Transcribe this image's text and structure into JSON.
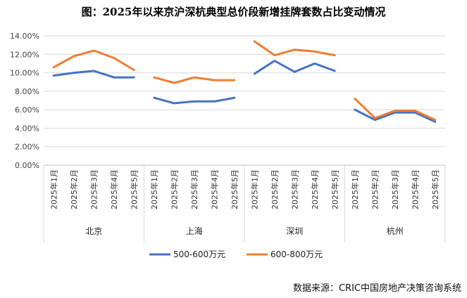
{
  "title": "图：2025年以来京沪深杭典型总价段新增挂牌套数占比变动情况",
  "source": "数据来源：CRIC中国房地产决策咨询系统",
  "chart_data": {
    "type": "line",
    "ylim": [
      0,
      0.14
    ],
    "yticks": [
      "0.00%",
      "2.00%",
      "4.00%",
      "6.00%",
      "8.00%",
      "10.00%",
      "12.00%",
      "14.00%"
    ],
    "grid": true,
    "legend": "bottom",
    "groups": [
      {
        "name": "北京",
        "categories": [
          "2025年1月",
          "2025年2月",
          "2025年3月",
          "2025年4月",
          "2025年5月"
        ]
      },
      {
        "name": "上海",
        "categories": [
          "2025年1月",
          "2025年2月",
          "2025年3月",
          "2025年4月",
          "2025年5月"
        ]
      },
      {
        "name": "深圳",
        "categories": [
          "2025年1月",
          "2025年2月",
          "2025年3月",
          "2025年4月",
          "2025年5月"
        ]
      },
      {
        "name": "杭州",
        "categories": [
          "2025年1月",
          "2025年2月",
          "2025年3月",
          "2025年4月",
          "2025年5月"
        ]
      }
    ],
    "series": [
      {
        "name": "500-600万元",
        "color": "#4472C4",
        "values": [
          [
            0.097,
            0.1,
            0.102,
            0.095,
            0.095
          ],
          [
            0.073,
            0.067,
            0.069,
            0.069,
            0.073
          ],
          [
            0.099,
            0.113,
            0.101,
            0.11,
            0.102
          ],
          [
            0.06,
            0.049,
            0.057,
            0.057,
            0.047
          ]
        ]
      },
      {
        "name": "600-800万元",
        "color": "#ED7D31",
        "values": [
          [
            0.106,
            0.118,
            0.124,
            0.116,
            0.103
          ],
          [
            0.095,
            0.089,
            0.095,
            0.092,
            0.092
          ],
          [
            0.134,
            0.119,
            0.125,
            0.123,
            0.119
          ],
          [
            0.072,
            0.051,
            0.059,
            0.059,
            0.049
          ]
        ]
      }
    ]
  }
}
